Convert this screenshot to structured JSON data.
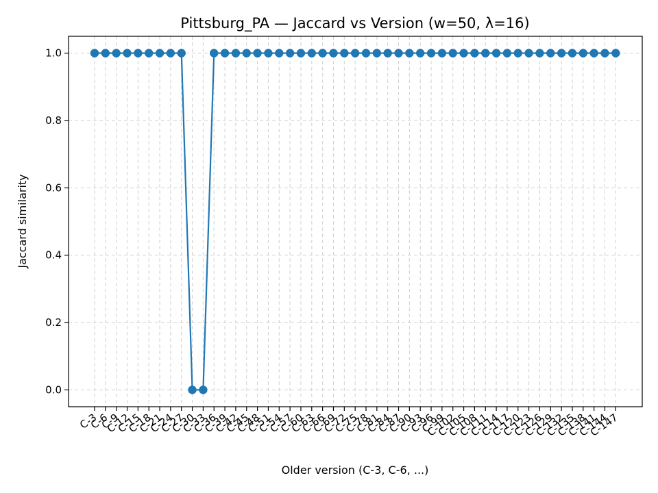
{
  "chart_data": {
    "type": "line",
    "title": "Pittsburg_PA — Jaccard vs Version (w=50, λ=16)",
    "xlabel": "Older version (C-3, C-6, ...)",
    "ylabel": "Jaccard similarity",
    "ylim": [
      -0.05,
      1.05
    ],
    "yticks": [
      "0.0",
      "0.2",
      "0.4",
      "0.6",
      "0.8",
      "1.0"
    ],
    "ytick_values": [
      0.0,
      0.2,
      0.4,
      0.6,
      0.8,
      1.0
    ],
    "grid": true,
    "line_color": "#1f77b4",
    "marker": "circle",
    "categories": [
      "C-3",
      "C-6",
      "C-9",
      "C-12",
      "C-15",
      "C-18",
      "C-21",
      "C-24",
      "C-27",
      "C-30",
      "C-33",
      "C-36",
      "C-39",
      "C-42",
      "C-45",
      "C-48",
      "C-51",
      "C-54",
      "C-57",
      "C-60",
      "C-63",
      "C-66",
      "C-69",
      "C-72",
      "C-75",
      "C-78",
      "C-81",
      "C-84",
      "C-87",
      "C-90",
      "C-93",
      "C-96",
      "C-99",
      "C-102",
      "C-105",
      "C-108",
      "C-111",
      "C-114",
      "C-117",
      "C-120",
      "C-123",
      "C-126",
      "C-129",
      "C-132",
      "C-135",
      "C-138",
      "C-141",
      "C-144",
      "C-147"
    ],
    "values": [
      1,
      1,
      1,
      1,
      1,
      1,
      1,
      1,
      1,
      0,
      0,
      1,
      1,
      1,
      1,
      1,
      1,
      1,
      1,
      1,
      1,
      1,
      1,
      1,
      1,
      1,
      1,
      1,
      1,
      1,
      1,
      1,
      1,
      1,
      1,
      1,
      1,
      1,
      1,
      1,
      1,
      1,
      1,
      1,
      1,
      1,
      1,
      1,
      1
    ]
  }
}
